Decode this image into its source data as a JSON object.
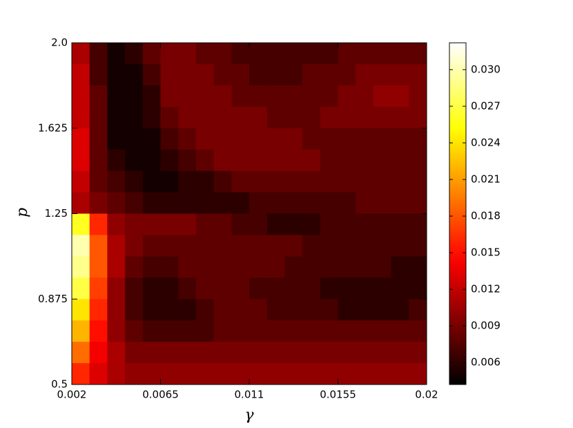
{
  "chart_data": {
    "type": "heatmap",
    "colormap": "hot",
    "origin": "upper",
    "x_label": "γ",
    "y_label": "p",
    "xlim": [
      0.002,
      0.02
    ],
    "xticks": [
      0.002,
      0.0065,
      0.011,
      0.0155,
      0.02
    ],
    "ylim": [
      0.5,
      2.0
    ],
    "yticks": [
      0.5,
      0.875,
      1.25,
      1.625,
      {
        "value": 2.0,
        "label": "2.0"
      }
    ],
    "clim": [
      0.0042,
      0.0322
    ],
    "cticks": [
      0.006,
      0.009,
      0.012,
      0.015,
      0.018,
      0.021,
      0.024,
      0.027,
      {
        "value": 0.03,
        "label": "0.030"
      }
    ],
    "z": [
      [
        0.011,
        0.007,
        0.005,
        0.006,
        0.008,
        0.009,
        0.009,
        0.008,
        0.008,
        0.007,
        0.007,
        0.007,
        0.007,
        0.007,
        0.007,
        0.008,
        0.008,
        0.008,
        0.008,
        0.008
      ],
      [
        0.012,
        0.007,
        0.005,
        0.005,
        0.007,
        0.009,
        0.009,
        0.009,
        0.008,
        0.008,
        0.007,
        0.007,
        0.007,
        0.008,
        0.008,
        0.008,
        0.009,
        0.009,
        0.009,
        0.009
      ],
      [
        0.012,
        0.008,
        0.005,
        0.005,
        0.006,
        0.009,
        0.009,
        0.009,
        0.009,
        0.008,
        0.008,
        0.008,
        0.008,
        0.008,
        0.008,
        0.009,
        0.009,
        0.01,
        0.01,
        0.009
      ],
      [
        0.012,
        0.008,
        0.005,
        0.005,
        0.006,
        0.008,
        0.009,
        0.009,
        0.009,
        0.009,
        0.009,
        0.008,
        0.008,
        0.008,
        0.009,
        0.009,
        0.009,
        0.009,
        0.009,
        0.009
      ],
      [
        0.013,
        0.008,
        0.005,
        0.005,
        0.005,
        0.007,
        0.008,
        0.009,
        0.009,
        0.009,
        0.009,
        0.009,
        0.009,
        0.008,
        0.008,
        0.008,
        0.008,
        0.008,
        0.008,
        0.008
      ],
      [
        0.013,
        0.008,
        0.006,
        0.005,
        0.005,
        0.006,
        0.007,
        0.008,
        0.009,
        0.009,
        0.009,
        0.009,
        0.009,
        0.009,
        0.008,
        0.008,
        0.008,
        0.008,
        0.008,
        0.008
      ],
      [
        0.012,
        0.008,
        0.007,
        0.006,
        0.005,
        0.005,
        0.006,
        0.006,
        0.007,
        0.008,
        0.008,
        0.008,
        0.008,
        0.008,
        0.008,
        0.008,
        0.008,
        0.008,
        0.008,
        0.008
      ],
      [
        0.011,
        0.009,
        0.008,
        0.007,
        0.006,
        0.006,
        0.006,
        0.006,
        0.006,
        0.006,
        0.007,
        0.007,
        0.007,
        0.007,
        0.007,
        0.007,
        0.008,
        0.008,
        0.008,
        0.008
      ],
      [
        0.026,
        0.016,
        0.01,
        0.009,
        0.009,
        0.009,
        0.009,
        0.008,
        0.008,
        0.007,
        0.007,
        0.006,
        0.006,
        0.006,
        0.007,
        0.007,
        0.007,
        0.007,
        0.007,
        0.007
      ],
      [
        0.03,
        0.018,
        0.011,
        0.009,
        0.008,
        0.008,
        0.008,
        0.008,
        0.008,
        0.008,
        0.008,
        0.008,
        0.008,
        0.007,
        0.007,
        0.007,
        0.007,
        0.007,
        0.007,
        0.007
      ],
      [
        0.029,
        0.018,
        0.011,
        0.008,
        0.007,
        0.007,
        0.008,
        0.008,
        0.008,
        0.008,
        0.008,
        0.008,
        0.007,
        0.007,
        0.007,
        0.007,
        0.007,
        0.007,
        0.006,
        0.006
      ],
      [
        0.027,
        0.017,
        0.01,
        0.007,
        0.006,
        0.006,
        0.007,
        0.008,
        0.008,
        0.008,
        0.007,
        0.007,
        0.007,
        0.007,
        0.006,
        0.006,
        0.006,
        0.006,
        0.006,
        0.006
      ],
      [
        0.024,
        0.016,
        0.01,
        0.007,
        0.006,
        0.006,
        0.006,
        0.007,
        0.008,
        0.008,
        0.008,
        0.007,
        0.007,
        0.007,
        0.007,
        0.006,
        0.006,
        0.006,
        0.006,
        0.007
      ],
      [
        0.022,
        0.015,
        0.01,
        0.008,
        0.007,
        0.007,
        0.007,
        0.007,
        0.008,
        0.008,
        0.008,
        0.008,
        0.008,
        0.008,
        0.008,
        0.008,
        0.008,
        0.008,
        0.008,
        0.008
      ],
      [
        0.019,
        0.014,
        0.011,
        0.009,
        0.009,
        0.009,
        0.009,
        0.009,
        0.009,
        0.009,
        0.009,
        0.009,
        0.009,
        0.009,
        0.009,
        0.009,
        0.009,
        0.009,
        0.009,
        0.009
      ],
      [
        0.016,
        0.013,
        0.011,
        0.01,
        0.01,
        0.01,
        0.01,
        0.01,
        0.01,
        0.01,
        0.01,
        0.01,
        0.01,
        0.01,
        0.01,
        0.01,
        0.01,
        0.01,
        0.01,
        0.01
      ]
    ]
  }
}
